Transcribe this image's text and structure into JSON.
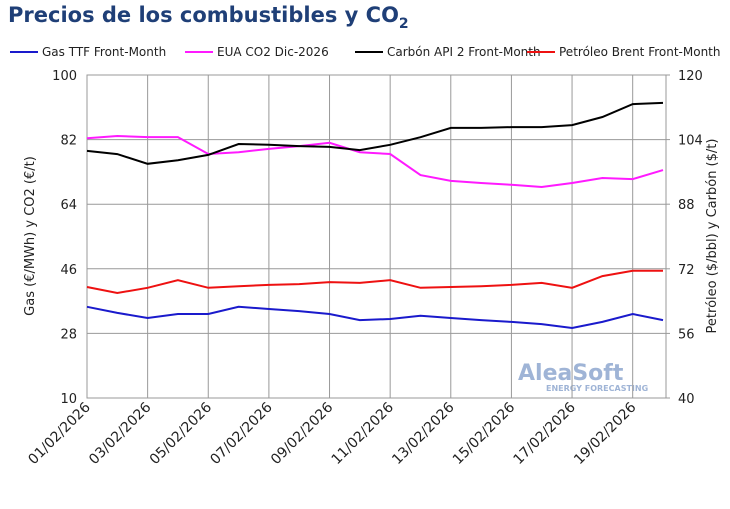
{
  "chart_data": {
    "type": "line",
    "title": "Precios de los combustibles y CO",
    "title_subscript": "2",
    "y_label": "Gas (€/MWh) y CO2 (€/t)",
    "y2_label": "Petróleo ($/bbl) y Carbón ($/t)",
    "watermark": "AleaSoft",
    "watermark_subtitle": "ENERGY FORECASTING",
    "categories": [
      "01/02/2026",
      null,
      "03/02/2026",
      null,
      "05/02/2026",
      null,
      "07/02/2026",
      null,
      "09/02/2026",
      null,
      "11/02/2026",
      null,
      "13/02/2026",
      null,
      "15/02/2026",
      null,
      "17/02/2026",
      null,
      "19/02/2026",
      null
    ],
    "ylim": [
      10,
      100
    ],
    "yticks": [
      10,
      28,
      46,
      64,
      82,
      100
    ],
    "y2lim": [
      40,
      120
    ],
    "y2ticks": [
      40,
      56,
      72,
      88,
      104,
      120
    ],
    "grid": true,
    "series": [
      {
        "name": "Gas TTF Front-Month",
        "color": "#1a1acc",
        "values": [
          35.4,
          33.7,
          32.3,
          33.4,
          33.4,
          35.4,
          34.8,
          34.2,
          33.4,
          31.7,
          32.0,
          32.9,
          32.3,
          31.7,
          31.2,
          30.6,
          29.5,
          31.2,
          33.4,
          31.7
        ]
      },
      {
        "name": "EUA CO2 Dic-2026",
        "color": "#ff1aff",
        "values": [
          82.4,
          83.0,
          82.7,
          82.7,
          78.0,
          78.5,
          79.4,
          80.2,
          81.1,
          78.5,
          78.0,
          72.1,
          70.5,
          69.9,
          69.4,
          68.8,
          69.9,
          71.3,
          71.0,
          73.5
        ]
      },
      {
        "name": "Carbón API 2 Front-Month",
        "color": "#000000",
        "axis": "y2",
        "values": [
          101.2,
          100.4,
          98.0,
          98.9,
          100.2,
          102.9,
          102.7,
          102.4,
          102.2,
          101.4,
          102.7,
          104.6,
          106.9,
          106.9,
          107.1,
          107.1,
          107.6,
          109.6,
          112.8,
          113.1
        ]
      },
      {
        "name": "Petróleo Brent Front-Month",
        "color": "#ee1111",
        "axis": "y2",
        "values": [
          67.5,
          66.0,
          67.3,
          69.2,
          67.3,
          67.7,
          68.0,
          68.2,
          68.7,
          68.5,
          69.2,
          67.3,
          67.5,
          67.7,
          68.0,
          68.5,
          67.3,
          70.2,
          71.5,
          71.5
        ]
      }
    ]
  }
}
